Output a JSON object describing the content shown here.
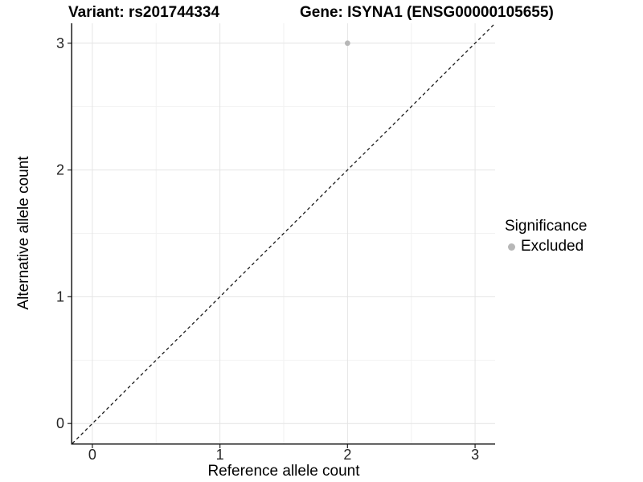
{
  "chart_data": {
    "type": "scatter",
    "titles": {
      "left": "Variant: rs201744334",
      "right": "Gene: ISYNA1 (ENSG00000105655)"
    },
    "xlabel": "Reference allele count",
    "ylabel": "Alternative allele count",
    "x_ticks": [
      0,
      1,
      2,
      3
    ],
    "y_ticks": [
      0,
      1,
      2,
      3
    ],
    "xlim": [
      -0.157,
      3.157
    ],
    "ylim": [
      -0.157,
      3.157
    ],
    "minor_step": 0.5,
    "grid": "major+minor",
    "reference_line": {
      "type": "identity",
      "style": "dashed"
    },
    "points": [
      {
        "x": 2,
        "y": 3,
        "significance": "Excluded"
      }
    ],
    "legend": {
      "title": "Significance",
      "position": "right",
      "entries": [
        {
          "label": "Excluded",
          "color": "#b7b7b7"
        }
      ]
    },
    "colors": {
      "point": "#b7b7b7",
      "grid_major": "#e4e4e4",
      "grid_minor": "#f2f2f2",
      "axis_line": "#1a1a1a",
      "tick_mark": "#333333",
      "tick_label": "#262626",
      "reference_line": "#1a1a1a",
      "background": "#ffffff"
    }
  }
}
